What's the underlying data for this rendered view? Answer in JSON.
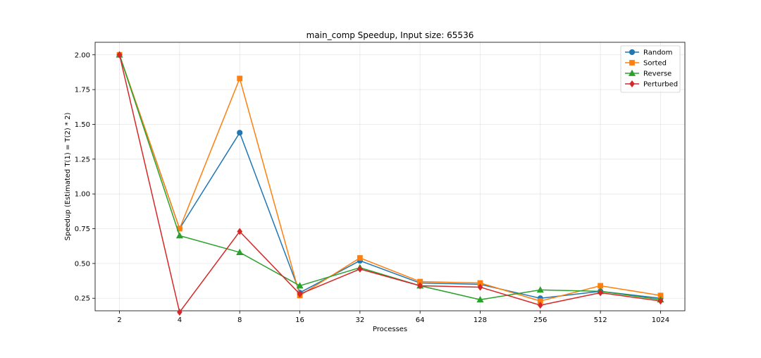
{
  "chart_data": {
    "type": "line",
    "title": "main_comp Speedup, Input size: 65536",
    "xlabel": "Processes",
    "ylabel": "Speedup (Estimated T(1) = T(2) * 2)",
    "x": [
      2,
      4,
      8,
      16,
      32,
      64,
      128,
      256,
      512,
      1024
    ],
    "x_tick_labels": [
      "2",
      "4",
      "8",
      "16",
      "32",
      "64",
      "128",
      "256",
      "512",
      "1024"
    ],
    "x_scale": "log2",
    "y_ticks": [
      0.25,
      0.5,
      0.75,
      1.0,
      1.25,
      1.5,
      1.75,
      2.0
    ],
    "y_tick_labels": [
      "0.25",
      "0.50",
      "0.75",
      "1.00",
      "1.25",
      "1.50",
      "1.75",
      "2.00"
    ],
    "ylim": [
      0.16,
      2.09
    ],
    "grid": true,
    "legend_position": "top-right",
    "series": [
      {
        "name": "Random",
        "color": "#1f77b4",
        "marker": "circle",
        "values": [
          2.0,
          0.75,
          1.44,
          0.29,
          0.52,
          0.36,
          0.35,
          0.25,
          0.3,
          0.25
        ]
      },
      {
        "name": "Sorted",
        "color": "#ff7f0e",
        "marker": "square",
        "values": [
          2.0,
          0.75,
          1.83,
          0.27,
          0.54,
          0.37,
          0.36,
          0.23,
          0.34,
          0.27
        ]
      },
      {
        "name": "Reverse",
        "color": "#2ca02c",
        "marker": "triangle",
        "values": [
          2.0,
          0.7,
          0.58,
          0.34,
          0.47,
          0.34,
          0.24,
          0.31,
          0.3,
          0.24
        ]
      },
      {
        "name": "Perturbed",
        "color": "#d62728",
        "marker": "diamond",
        "values": [
          2.0,
          0.15,
          0.73,
          0.28,
          0.46,
          0.34,
          0.33,
          0.2,
          0.29,
          0.23
        ]
      }
    ]
  }
}
